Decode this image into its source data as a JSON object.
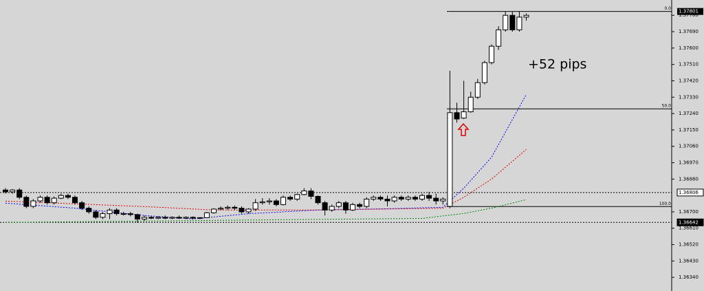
{
  "chart_data": {
    "type": "candlestick",
    "annotation": "+52 pips",
    "ylim": [
      1.36265,
      1.37864
    ],
    "yticks": [
      {
        "value": 1.3778,
        "label": "1.37780"
      },
      {
        "value": 1.3769,
        "label": "1.37690"
      },
      {
        "value": 1.376,
        "label": "1.37600"
      },
      {
        "value": 1.3751,
        "label": "1.37510"
      },
      {
        "value": 1.3742,
        "label": "1.37420"
      },
      {
        "value": 1.3733,
        "label": "1.37330"
      },
      {
        "value": 1.3724,
        "label": "1.37240"
      },
      {
        "value": 1.3715,
        "label": "1.37150"
      },
      {
        "value": 1.3706,
        "label": "1.37060"
      },
      {
        "value": 1.3697,
        "label": "1.36970"
      },
      {
        "value": 1.3688,
        "label": "1.36880"
      },
      {
        "value": 1.367,
        "label": "1.36700"
      },
      {
        "value": 1.3661,
        "label": "1.36610"
      },
      {
        "value": 1.3652,
        "label": "1.36520"
      },
      {
        "value": 1.3643,
        "label": "1.36430"
      },
      {
        "value": 1.3634,
        "label": "1.36340"
      }
    ],
    "open": [
      1.3682,
      1.3681,
      1.3682,
      1.3678,
      1.3673,
      1.3676,
      1.3678,
      1.3675,
      1.36775,
      1.3679,
      1.3678,
      1.3675,
      1.3672,
      1.367,
      1.3667,
      1.3669,
      1.3671,
      1.3669,
      1.3669,
      1.36685,
      1.3666,
      1.3667,
      1.36665,
      1.3667,
      1.36665,
      1.3667,
      1.36665,
      1.3667,
      1.36665,
      1.36668,
      1.36695,
      1.36715,
      1.3672,
      1.36725,
      1.3672,
      1.367,
      1.36715,
      1.3675,
      1.36755,
      1.3676,
      1.3674,
      1.3678,
      1.3677,
      1.36795,
      1.36815,
      1.36785,
      1.3675,
      1.3671,
      1.3673,
      1.3675,
      1.3671,
      1.3674,
      1.3673,
      1.3677,
      1.3678,
      1.3677,
      1.3676,
      1.3678,
      1.3677,
      1.3678,
      1.3677,
      1.3679,
      1.36775,
      1.3676,
      1.3673,
      1.37245,
      1.37215,
      1.3725,
      1.3733,
      1.3741,
      1.3752,
      1.3761,
      1.377,
      1.3778,
      1.377,
      1.3777
    ],
    "high": [
      1.3683,
      1.36825,
      1.3683,
      1.3679,
      1.3677,
      1.3679,
      1.3679,
      1.36785,
      1.368,
      1.368,
      1.3679,
      1.3676,
      1.3673,
      1.3671,
      1.367,
      1.3672,
      1.3672,
      1.367,
      1.367,
      1.3669,
      1.3668,
      1.36675,
      1.36675,
      1.3668,
      1.36675,
      1.3668,
      1.36675,
      1.36675,
      1.3667,
      1.367,
      1.3672,
      1.3673,
      1.36735,
      1.36735,
      1.3673,
      1.3672,
      1.3677,
      1.36775,
      1.36775,
      1.3677,
      1.3679,
      1.3679,
      1.368,
      1.3683,
      1.3683,
      1.3679,
      1.3676,
      1.3674,
      1.3676,
      1.3676,
      1.3675,
      1.3675,
      1.3678,
      1.3679,
      1.3679,
      1.3679,
      1.3679,
      1.3679,
      1.3679,
      1.3679,
      1.368,
      1.3681,
      1.368,
      1.3678,
      1.37475,
      1.373,
      1.3742,
      1.3736,
      1.3743,
      1.3753,
      1.3762,
      1.3772,
      1.378,
      1.37801,
      1.37801,
      1.3779
    ],
    "low": [
      1.368,
      1.368,
      1.3677,
      1.3672,
      1.3672,
      1.3675,
      1.3674,
      1.3674,
      1.3677,
      1.3677,
      1.3674,
      1.3671,
      1.3669,
      1.3666,
      1.3666,
      1.3666,
      1.3668,
      1.3668,
      1.36675,
      1.3664,
      1.3665,
      1.3666,
      1.3666,
      1.3666,
      1.3666,
      1.3666,
      1.3666,
      1.3666,
      1.3666,
      1.36665,
      1.3669,
      1.3671,
      1.3671,
      1.3671,
      1.3669,
      1.3669,
      1.36705,
      1.3674,
      1.3674,
      1.3673,
      1.36735,
      1.3676,
      1.3676,
      1.3679,
      1.3677,
      1.3674,
      1.3668,
      1.367,
      1.3672,
      1.3669,
      1.36705,
      1.3672,
      1.3672,
      1.3676,
      1.3676,
      1.3673,
      1.3675,
      1.3676,
      1.3676,
      1.3676,
      1.3676,
      1.3676,
      1.3674,
      1.3674,
      1.3672,
      1.3719,
      1.3721,
      1.37245,
      1.3732,
      1.374,
      1.3751,
      1.3759,
      1.3769,
      1.3769,
      1.3769,
      1.3775
    ],
    "close": [
      1.3681,
      1.3682,
      1.3678,
      1.3673,
      1.3676,
      1.3678,
      1.3675,
      1.36775,
      1.3679,
      1.3678,
      1.3675,
      1.3672,
      1.367,
      1.3667,
      1.3669,
      1.3671,
      1.3669,
      1.3669,
      1.36685,
      1.3666,
      1.3667,
      1.36665,
      1.3667,
      1.36665,
      1.3667,
      1.36665,
      1.3667,
      1.36665,
      1.36668,
      1.36695,
      1.36715,
      1.3672,
      1.36725,
      1.3672,
      1.367,
      1.36715,
      1.3675,
      1.36755,
      1.3676,
      1.3674,
      1.3678,
      1.3677,
      1.36795,
      1.36815,
      1.36785,
      1.3675,
      1.3671,
      1.3673,
      1.3675,
      1.3671,
      1.3674,
      1.3673,
      1.3677,
      1.3678,
      1.3677,
      1.3676,
      1.3678,
      1.3677,
      1.3678,
      1.3677,
      1.3679,
      1.36775,
      1.3676,
      1.3677,
      1.37245,
      1.3721,
      1.3725,
      1.3733,
      1.3741,
      1.3752,
      1.3761,
      1.377,
      1.3778,
      1.377,
      1.3777,
      1.3778
    ],
    "moving_averages": [
      {
        "color": "#0000ff",
        "x": [
          0,
          10,
          20,
          27,
          35,
          45,
          55,
          63,
          66,
          70,
          75
        ],
        "values": [
          1.36748,
          1.3672,
          1.3668,
          1.36661,
          1.3669,
          1.3671,
          1.36717,
          1.36725,
          1.3683,
          1.37,
          1.37345
        ]
      },
      {
        "color": "#e00000",
        "x": [
          0,
          20,
          30,
          45,
          63,
          66,
          70,
          75
        ],
        "values": [
          1.36759,
          1.36729,
          1.3671,
          1.3671,
          1.3672,
          1.3678,
          1.3688,
          1.37043
        ]
      },
      {
        "color": "#008000",
        "x": [
          0,
          30,
          60,
          66,
          70,
          75
        ],
        "values": [
          1.36642,
          1.36653,
          1.36664,
          1.36691,
          1.3672,
          1.36767
        ]
      }
    ],
    "fib_levels": [
      {
        "value": 1.37801,
        "label": "0.0"
      },
      {
        "value": 1.37266,
        "label": "50.0"
      },
      {
        "value": 1.36729,
        "label": "100.0"
      }
    ],
    "dotted_levels": [
      {
        "value": 1.36806,
        "label": "1.36806"
      },
      {
        "value": 1.36642,
        "label": "1.36642"
      }
    ],
    "price_marker": {
      "value": 1.37801,
      "label": "1.37801"
    }
  }
}
